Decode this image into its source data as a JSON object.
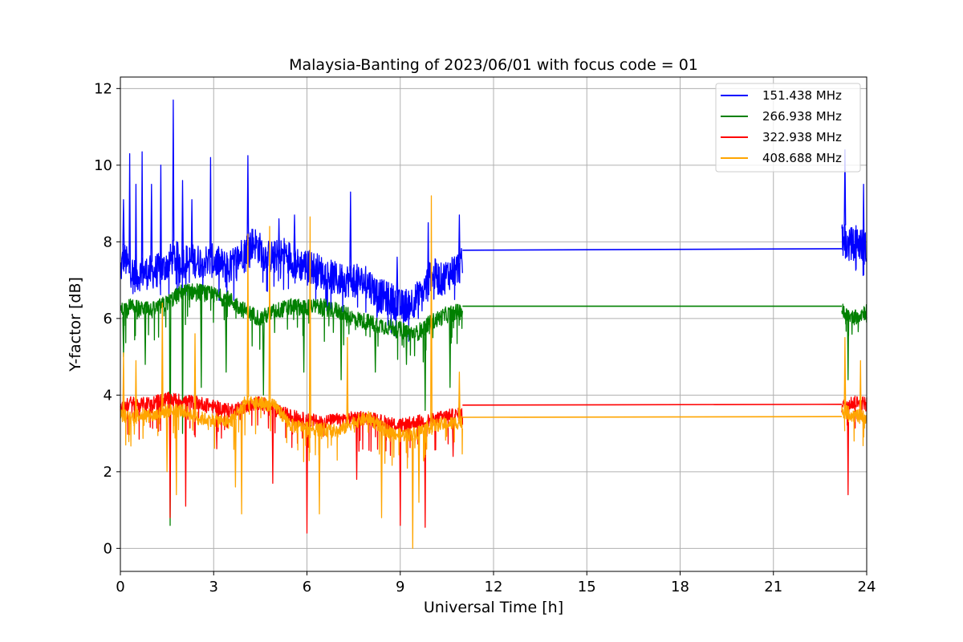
{
  "chart_data": {
    "type": "line",
    "title": "Malaysia-Banting of 2023/06/01 with focus code = 01",
    "xlabel": "Universal Time [h]",
    "ylabel": "Y-factor [dB]",
    "xlim": [
      0,
      24
    ],
    "ylim": [
      -0.6,
      12.3
    ],
    "xticks": [
      0,
      3,
      6,
      9,
      12,
      15,
      18,
      21,
      24
    ],
    "yticks": [
      0,
      2,
      4,
      6,
      8,
      10,
      12
    ],
    "grid": true,
    "legend_position": "top-right",
    "series": [
      {
        "name": "151.438 MHz",
        "color": "#0000ff",
        "segments": [
          {
            "x": [
              0,
              0.1,
              0.3,
              0.5,
              0.7,
              1.0,
              1.4,
              1.7,
              2.0,
              2.5,
              3.0,
              3.5,
              4.0,
              4.3,
              4.7,
              5.0,
              5.3,
              5.7,
              6.0,
              6.5,
              7.0,
              7.5,
              8.0,
              8.3,
              8.7,
              9.0,
              9.3,
              9.7,
              10.0,
              10.3,
              10.6,
              11.0
            ],
            "y": [
              7.2,
              7.6,
              7.3,
              7.1,
              7.2,
              7.2,
              7.3,
              7.6,
              7.5,
              7.5,
              7.5,
              7.3,
              7.8,
              8.0,
              7.6,
              7.6,
              7.7,
              7.4,
              7.4,
              7.2,
              7.0,
              7.0,
              6.9,
              6.6,
              6.5,
              6.3,
              6.4,
              6.6,
              7.2,
              7.0,
              7.2,
              7.4
            ]
          },
          {
            "x": [
              11.0,
              23.2
            ],
            "y": [
              7.78,
              7.82
            ]
          },
          {
            "x": [
              23.2,
              23.4,
              23.7,
              24.0
            ],
            "y": [
              8.2,
              7.9,
              8.0,
              7.8
            ]
          }
        ],
        "spikes": [
          {
            "x": 0.1,
            "y": 9.1
          },
          {
            "x": 0.3,
            "y": 10.3
          },
          {
            "x": 0.5,
            "y": 9.5
          },
          {
            "x": 0.7,
            "y": 10.35
          },
          {
            "x": 1.0,
            "y": 9.5
          },
          {
            "x": 1.3,
            "y": 10.0
          },
          {
            "x": 1.7,
            "y": 11.7
          },
          {
            "x": 2.0,
            "y": 9.6
          },
          {
            "x": 2.3,
            "y": 9.1
          },
          {
            "x": 2.9,
            "y": 10.2
          },
          {
            "x": 4.1,
            "y": 10.25
          },
          {
            "x": 5.1,
            "y": 8.6
          },
          {
            "x": 5.6,
            "y": 8.7
          },
          {
            "x": 7.4,
            "y": 9.3
          },
          {
            "x": 8.9,
            "y": 7.6
          },
          {
            "x": 9.9,
            "y": 8.5
          },
          {
            "x": 10.9,
            "y": 8.7
          },
          {
            "x": 23.3,
            "y": 10.4
          },
          {
            "x": 23.9,
            "y": 9.5
          }
        ]
      },
      {
        "name": "266.938 MHz",
        "color": "#008000",
        "segments": [
          {
            "x": [
              0,
              0.3,
              0.6,
              1.0,
              1.5,
              2.0,
              2.5,
              3.0,
              3.5,
              4.0,
              4.5,
              5.0,
              5.5,
              6.0,
              6.5,
              7.0,
              7.5,
              8.0,
              8.5,
              9.0,
              9.5,
              10.0,
              10.5,
              11.0
            ],
            "y": [
              6.2,
              6.3,
              6.25,
              6.2,
              6.4,
              6.7,
              6.7,
              6.6,
              6.5,
              6.2,
              6.0,
              6.2,
              6.3,
              6.3,
              6.3,
              6.2,
              6.0,
              5.9,
              5.8,
              5.7,
              5.6,
              5.9,
              6.1,
              6.2
            ]
          },
          {
            "x": [
              11.0,
              23.2
            ],
            "y": [
              6.32,
              6.32
            ]
          },
          {
            "x": [
              23.2,
              23.5,
              24.0
            ],
            "y": [
              6.2,
              6.0,
              6.2
            ]
          }
        ],
        "spikes": [
          {
            "x": 0.1,
            "y": 5.0
          },
          {
            "x": 0.8,
            "y": 4.8
          },
          {
            "x": 1.6,
            "y": 0.6
          },
          {
            "x": 2.0,
            "y": 3.0
          },
          {
            "x": 2.6,
            "y": 4.2
          },
          {
            "x": 3.4,
            "y": 4.6
          },
          {
            "x": 4.6,
            "y": 4.0
          },
          {
            "x": 5.9,
            "y": 4.6
          },
          {
            "x": 7.1,
            "y": 4.4
          },
          {
            "x": 8.2,
            "y": 4.6
          },
          {
            "x": 9.2,
            "y": 4.8
          },
          {
            "x": 9.8,
            "y": 3.6
          },
          {
            "x": 10.6,
            "y": 4.2
          },
          {
            "x": 23.4,
            "y": 4.4
          }
        ]
      },
      {
        "name": "322.938 MHz",
        "color": "#ff0000",
        "segments": [
          {
            "x": [
              0,
              0.3,
              0.6,
              1.0,
              1.5,
              2.0,
              2.5,
              3.0,
              3.5,
              4.0,
              4.5,
              5.0,
              5.5,
              6.0,
              6.5,
              7.0,
              7.5,
              8.0,
              8.5,
              9.0,
              9.5,
              10.0,
              10.5,
              11.0
            ],
            "y": [
              3.6,
              3.8,
              3.75,
              3.8,
              3.9,
              3.85,
              3.8,
              3.7,
              3.6,
              3.7,
              3.8,
              3.6,
              3.45,
              3.35,
              3.3,
              3.35,
              3.4,
              3.4,
              3.3,
              3.2,
              3.3,
              3.35,
              3.45,
              3.5
            ]
          },
          {
            "x": [
              11.0,
              23.2
            ],
            "y": [
              3.74,
              3.76
            ]
          },
          {
            "x": [
              23.2,
              23.5,
              24.0
            ],
            "y": [
              3.7,
              3.8,
              3.8
            ]
          }
        ],
        "spikes": [
          {
            "x": 1.6,
            "y": 0.8
          },
          {
            "x": 2.1,
            "y": 1.1
          },
          {
            "x": 3.1,
            "y": 2.6
          },
          {
            "x": 4.9,
            "y": 1.7
          },
          {
            "x": 6.0,
            "y": 0.4
          },
          {
            "x": 7.6,
            "y": 1.8
          },
          {
            "x": 9.0,
            "y": 0.6
          },
          {
            "x": 9.8,
            "y": 0.55
          },
          {
            "x": 10.7,
            "y": 2.4
          },
          {
            "x": 23.4,
            "y": 1.4
          }
        ]
      },
      {
        "name": "408.688 MHz",
        "color": "#ffa500",
        "segments": [
          {
            "x": [
              0,
              0.3,
              0.6,
              1.0,
              1.5,
              2.0,
              2.5,
              3.0,
              3.5,
              4.0,
              4.5,
              5.0,
              5.5,
              6.0,
              6.5,
              7.0,
              7.5,
              8.0,
              8.5,
              9.0,
              9.5,
              10.0,
              10.5,
              11.0
            ],
            "y": [
              3.5,
              3.4,
              3.5,
              3.45,
              3.6,
              3.6,
              3.4,
              3.35,
              3.3,
              3.8,
              3.8,
              3.7,
              3.2,
              3.15,
              3.1,
              3.05,
              3.3,
              3.4,
              3.1,
              2.95,
              3.0,
              3.2,
              3.25,
              3.3
            ]
          },
          {
            "x": [
              11.0,
              23.2
            ],
            "y": [
              3.42,
              3.44
            ]
          },
          {
            "x": [
              23.2,
              23.5,
              24.0
            ],
            "y": [
              3.6,
              3.5,
              3.4
            ]
          }
        ],
        "spikes": [
          {
            "x": 0.1,
            "y": 5.1
          },
          {
            "x": 0.5,
            "y": 4.9
          },
          {
            "x": 1.35,
            "y": 6.4
          },
          {
            "x": 1.5,
            "y": 2.0
          },
          {
            "x": 1.8,
            "y": 1.4
          },
          {
            "x": 2.4,
            "y": 5.6
          },
          {
            "x": 3.7,
            "y": 1.6
          },
          {
            "x": 3.9,
            "y": 0.9
          },
          {
            "x": 4.1,
            "y": 8.2
          },
          {
            "x": 4.8,
            "y": 8.4
          },
          {
            "x": 6.1,
            "y": 8.65
          },
          {
            "x": 6.4,
            "y": 0.9
          },
          {
            "x": 7.3,
            "y": 5.5
          },
          {
            "x": 8.4,
            "y": 0.8
          },
          {
            "x": 9.4,
            "y": 0.0
          },
          {
            "x": 9.6,
            "y": 1.2
          },
          {
            "x": 10.0,
            "y": 9.2
          },
          {
            "x": 10.9,
            "y": 4.6
          },
          {
            "x": 23.3,
            "y": 5.5
          },
          {
            "x": 23.8,
            "y": 4.9
          }
        ]
      }
    ]
  }
}
